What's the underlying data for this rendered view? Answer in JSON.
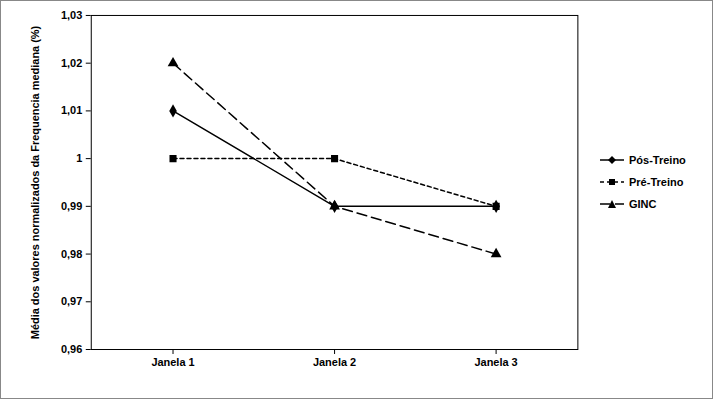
{
  "chart_data": {
    "type": "line",
    "y_label": "Média dos valores normalizados da Frequencia mediana (%)",
    "categories": [
      "Janela 1",
      "Janela 2",
      "Janela 3"
    ],
    "series": [
      {
        "name": "Pós-Treino",
        "color": "#000000",
        "marker": "diamond",
        "line_style": "solid",
        "values": [
          1.01,
          0.99,
          0.99
        ]
      },
      {
        "name": "Pré-Treino",
        "color": "#000000",
        "marker": "square",
        "line_style": "dashed",
        "values": [
          1.0,
          1.0,
          0.99
        ]
      },
      {
        "name": "GINC",
        "color": "#000000",
        "marker": "triangle",
        "line_style": "longdash",
        "values": [
          1.02,
          0.99,
          0.98
        ]
      }
    ],
    "ylim": [
      0.96,
      1.03
    ],
    "yticks": [
      {
        "value": 0.96,
        "label": "0,96"
      },
      {
        "value": 0.97,
        "label": "0,97"
      },
      {
        "value": 0.98,
        "label": "0,98"
      },
      {
        "value": 0.99,
        "label": "0,99"
      },
      1,
      {
        "value": 1.01,
        "label": "1,01"
      },
      {
        "value": 1.02,
        "label": "1,02"
      },
      {
        "value": 1.03,
        "label": "1,03"
      }
    ],
    "grid": false,
    "legend": "right"
  }
}
